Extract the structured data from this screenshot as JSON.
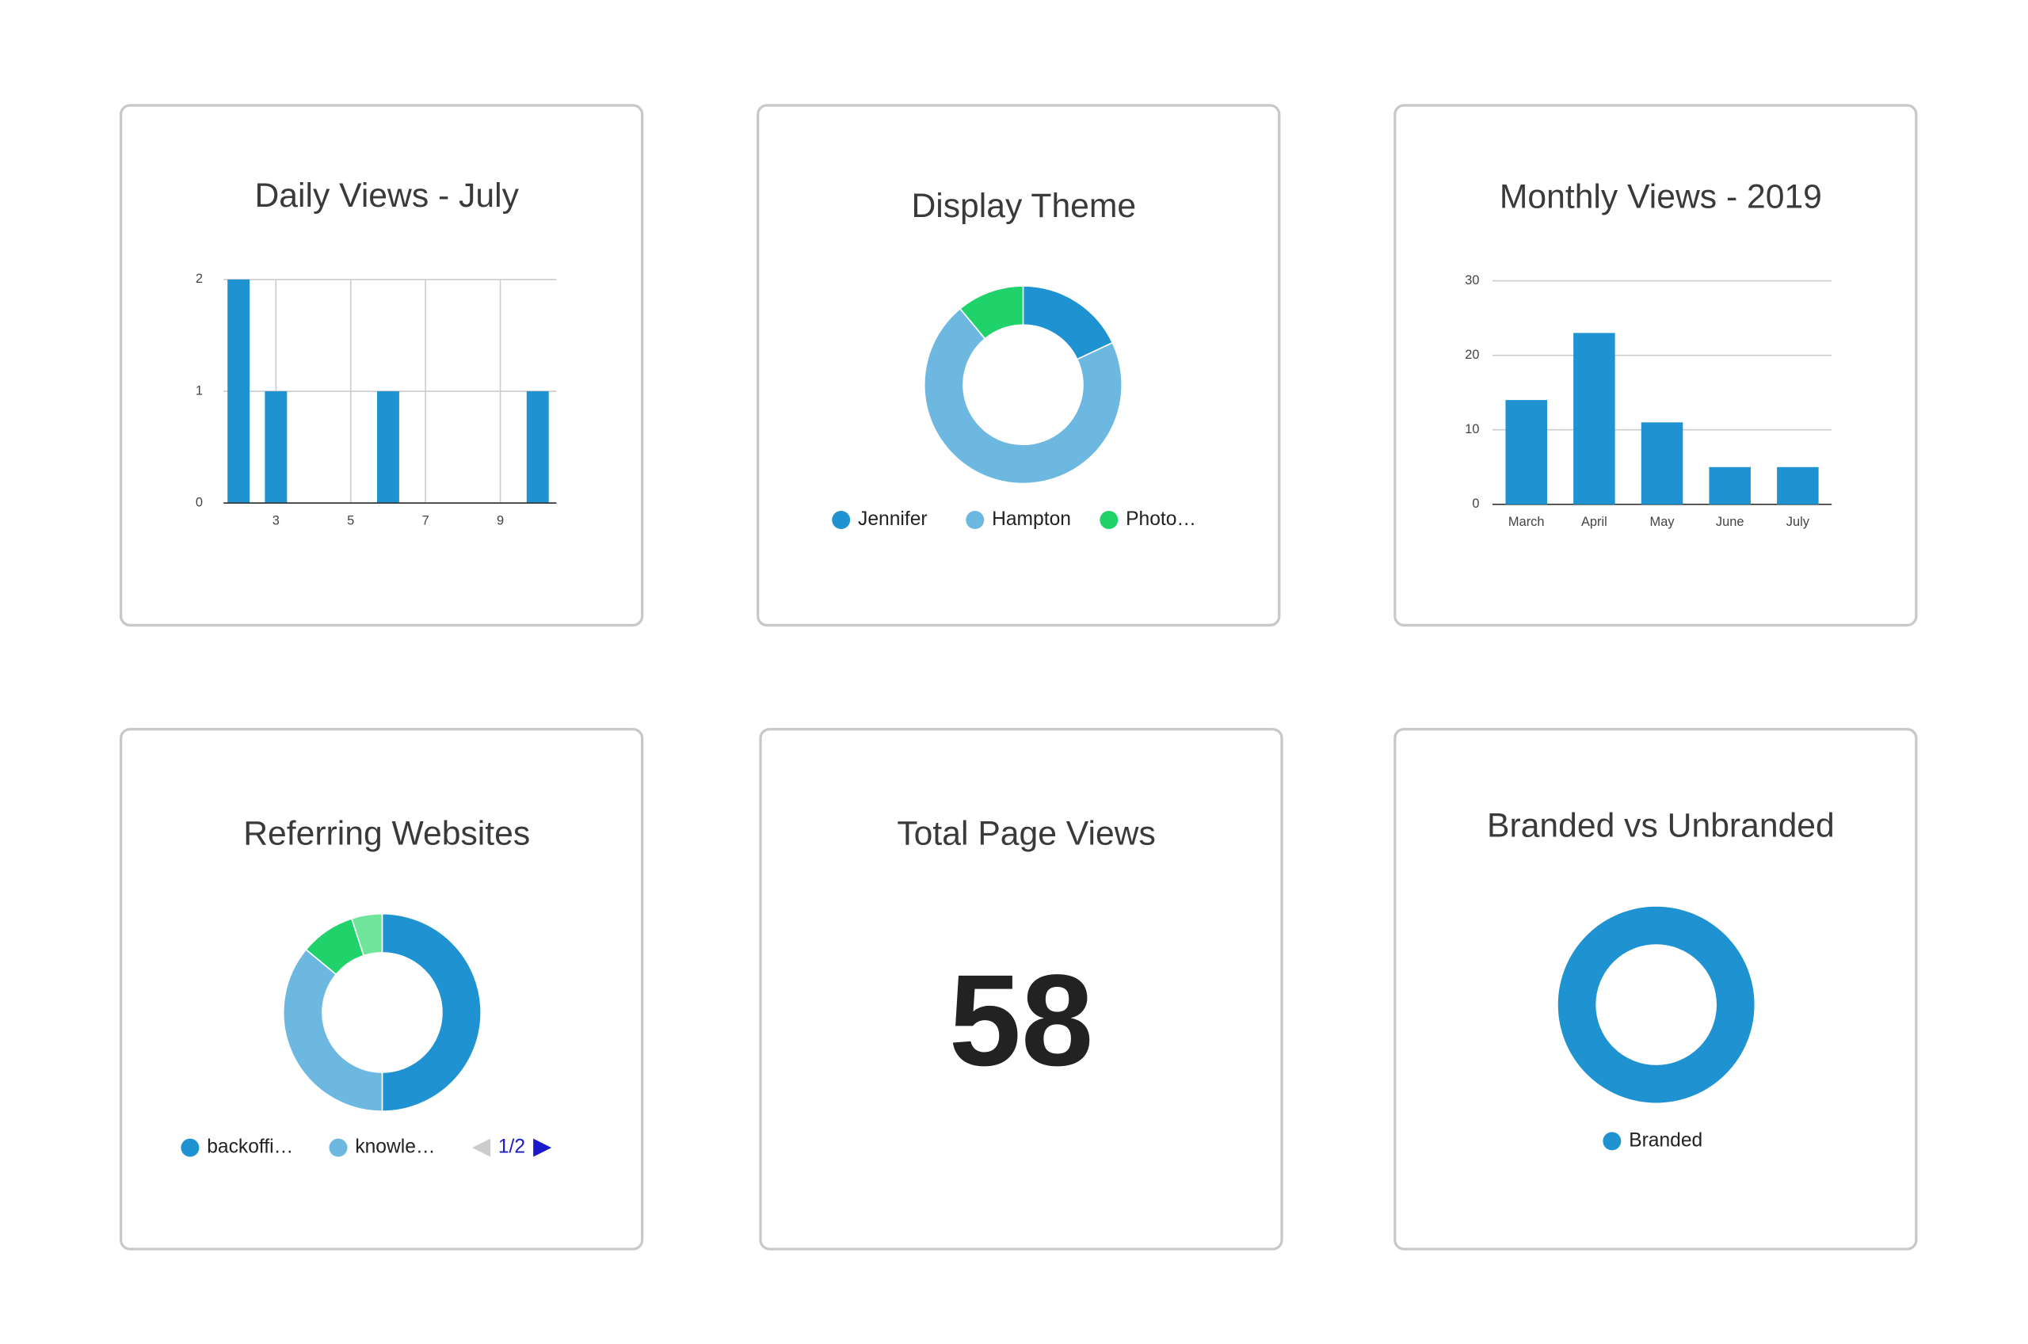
{
  "chart_data": [
    {
      "type": "bar",
      "title": "Daily Views - July",
      "x": [
        2,
        3,
        6,
        10
      ],
      "values": [
        2,
        1,
        1,
        1
      ],
      "color": "#1f93d1",
      "xlim": [
        1.6,
        10.5
      ],
      "xticks": [
        3,
        5,
        7,
        9
      ],
      "ylim": [
        0,
        2
      ],
      "yticks": [
        0,
        1,
        2
      ],
      "grid": true
    },
    {
      "type": "donut",
      "title": "Display Theme",
      "categories": [
        "Jennifer",
        "Hampton",
        "Photo…"
      ],
      "values": [
        18,
        71,
        11
      ],
      "colors": [
        "#1f93d1",
        "#6cb8e0",
        "#1fd36a"
      ]
    },
    {
      "type": "column",
      "title": "Monthly Views - 2019",
      "categories": [
        "March",
        "April",
        "May",
        "June",
        "July"
      ],
      "values": [
        14,
        23,
        11,
        5,
        5
      ],
      "color": "#1f93d1",
      "ylim": [
        0,
        30
      ],
      "yticks": [
        0,
        10,
        20,
        30
      ],
      "grid": true
    },
    {
      "type": "donut",
      "title": "Referring Websites",
      "categories": [
        "backoffi…",
        "knowle…",
        null,
        null
      ],
      "values": [
        50,
        36,
        9,
        5
      ],
      "colors": [
        "#1f93d1",
        "#6cb8e0",
        "#1fd36a",
        "#6fe49b"
      ],
      "pager": "1/2"
    },
    {
      "type": "metric",
      "title": "Total Page Views",
      "value": 58
    },
    {
      "type": "donut",
      "title": "Branded vs Unbranded",
      "categories": [
        "Branded"
      ],
      "values": [
        100
      ],
      "colors": [
        "#1f93d1"
      ]
    }
  ]
}
